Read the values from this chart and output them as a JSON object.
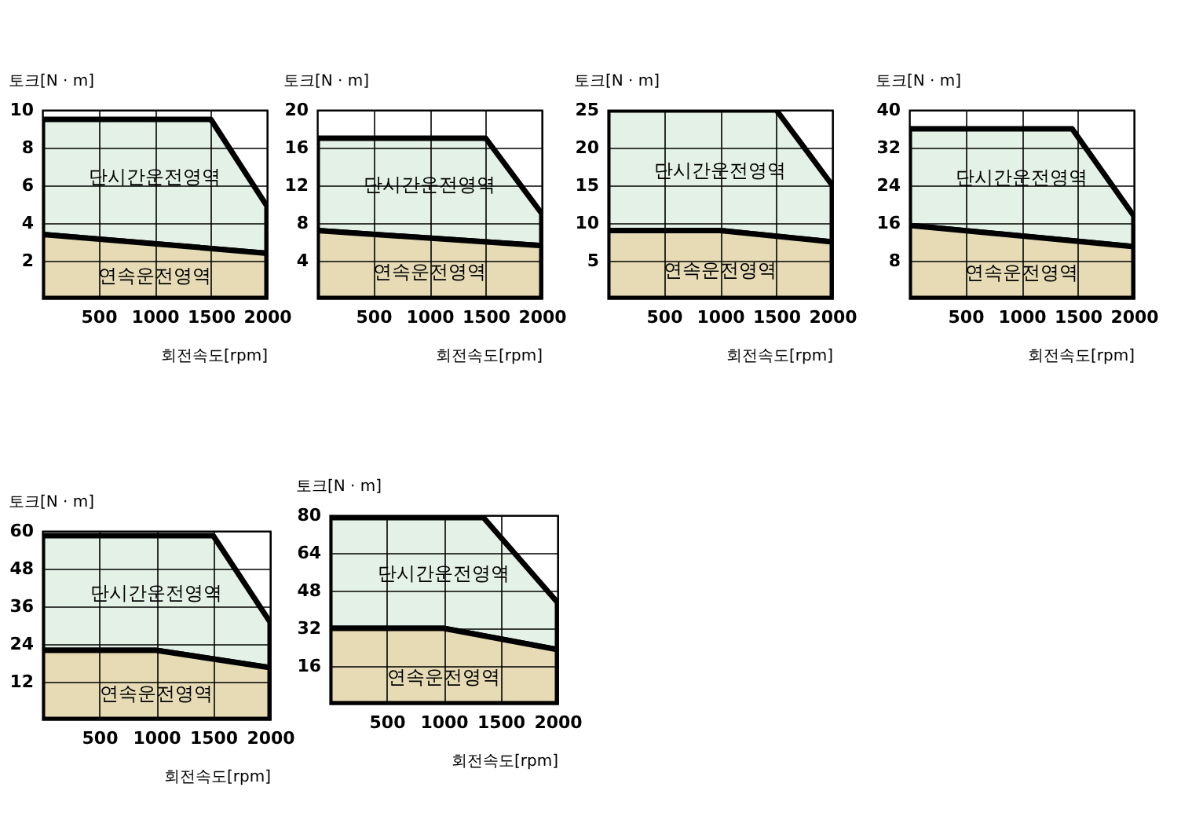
{
  "chart_data": [
    {
      "type": "area",
      "xlabel": "회전속도[rpm]",
      "ylabel": "토크[N · m]",
      "xlim": [
        0,
        2000
      ],
      "ylim": [
        0,
        10
      ],
      "xticks": [
        500,
        1000,
        1500,
        2000
      ],
      "yticks": [
        2,
        4,
        6,
        8,
        10
      ],
      "grid": true,
      "series": [
        {
          "name": "단시간운전영역",
          "color": "#e3f1e6",
          "x": [
            0,
            1500,
            2000
          ],
          "values": [
            9.5,
            9.5,
            4.9
          ]
        },
        {
          "name": "연속운전영역",
          "color": "#e6dbb5",
          "x": [
            0,
            2000
          ],
          "values": [
            3.4,
            2.4
          ]
        }
      ]
    },
    {
      "type": "area",
      "xlabel": "회전속도[rpm]",
      "ylabel": "토크[N · m]",
      "xlim": [
        0,
        2000
      ],
      "ylim": [
        0,
        20
      ],
      "xticks": [
        500,
        1000,
        1500,
        2000
      ],
      "yticks": [
        4,
        8,
        12,
        16,
        20
      ],
      "grid": true,
      "series": [
        {
          "name": "단시간운전영역",
          "color": "#e3f1e6",
          "x": [
            0,
            1500,
            2000
          ],
          "values": [
            17,
            17,
            9
          ]
        },
        {
          "name": "연속운전영역",
          "color": "#e6dbb5",
          "x": [
            0,
            2000
          ],
          "values": [
            7.2,
            5.6
          ]
        }
      ]
    },
    {
      "type": "area",
      "xlabel": "회전속도[rpm]",
      "ylabel": "토크[N · m]",
      "xlim": [
        0,
        2000
      ],
      "ylim": [
        0,
        25
      ],
      "xticks": [
        500,
        1000,
        1500,
        2000
      ],
      "yticks": [
        5,
        10,
        15,
        20,
        25
      ],
      "grid": true,
      "series": [
        {
          "name": "단시간운전영역",
          "color": "#e3f1e6",
          "x": [
            0,
            1000,
            1500,
            2000
          ],
          "values": [
            25,
            25,
            25,
            15
          ]
        },
        {
          "name": "연속운전영역",
          "color": "#e6dbb5",
          "x": [
            0,
            1000,
            2000
          ],
          "values": [
            9,
            9,
            7.5
          ]
        }
      ]
    },
    {
      "type": "area",
      "xlabel": "회전속도[rpm]",
      "ylabel": "토크[N · m]",
      "xlim": [
        0,
        2000
      ],
      "ylim": [
        0,
        40
      ],
      "xticks": [
        500,
        1000,
        1500,
        2000
      ],
      "yticks": [
        8,
        16,
        24,
        32,
        40
      ],
      "grid": true,
      "series": [
        {
          "name": "단시간운전영역",
          "color": "#e3f1e6",
          "x": [
            0,
            1450,
            2000
          ],
          "values": [
            36,
            36,
            17.5
          ]
        },
        {
          "name": "연속운전영역",
          "color": "#e6dbb5",
          "x": [
            0,
            2000
          ],
          "values": [
            15.5,
            11
          ]
        }
      ]
    },
    {
      "type": "area",
      "xlabel": "회전속도[rpm]",
      "ylabel": "토크[N · m]",
      "xlim": [
        0,
        2000
      ],
      "ylim": [
        0,
        60
      ],
      "xticks": [
        500,
        1000,
        1500,
        2000
      ],
      "yticks": [
        12,
        24,
        36,
        48,
        60
      ],
      "grid": true,
      "series": [
        {
          "name": "단시간운전영역",
          "color": "#e3f1e6",
          "x": [
            0,
            1000,
            1500,
            2000
          ],
          "values": [
            58.5,
            58.5,
            58.5,
            31
          ]
        },
        {
          "name": "연속운전영역",
          "color": "#e6dbb5",
          "x": [
            0,
            1000,
            2000
          ],
          "values": [
            22,
            22,
            16.5
          ]
        }
      ]
    },
    {
      "type": "area",
      "xlabel": "회전속도[rpm]",
      "ylabel": "토크[N · m]",
      "xlim": [
        0,
        2000
      ],
      "ylim": [
        0,
        80
      ],
      "xticks": [
        500,
        1000,
        1500,
        2000
      ],
      "yticks": [
        16,
        32,
        48,
        64,
        80
      ],
      "grid": true,
      "series": [
        {
          "name": "단시간운전영역",
          "color": "#e3f1e6",
          "x": [
            0,
            1000,
            1350,
            2000
          ],
          "values": [
            79,
            79,
            79,
            43
          ]
        },
        {
          "name": "연속운전영역",
          "color": "#e6dbb5",
          "x": [
            0,
            1000,
            2000
          ],
          "values": [
            32,
            32,
            23
          ]
        }
      ]
    }
  ]
}
